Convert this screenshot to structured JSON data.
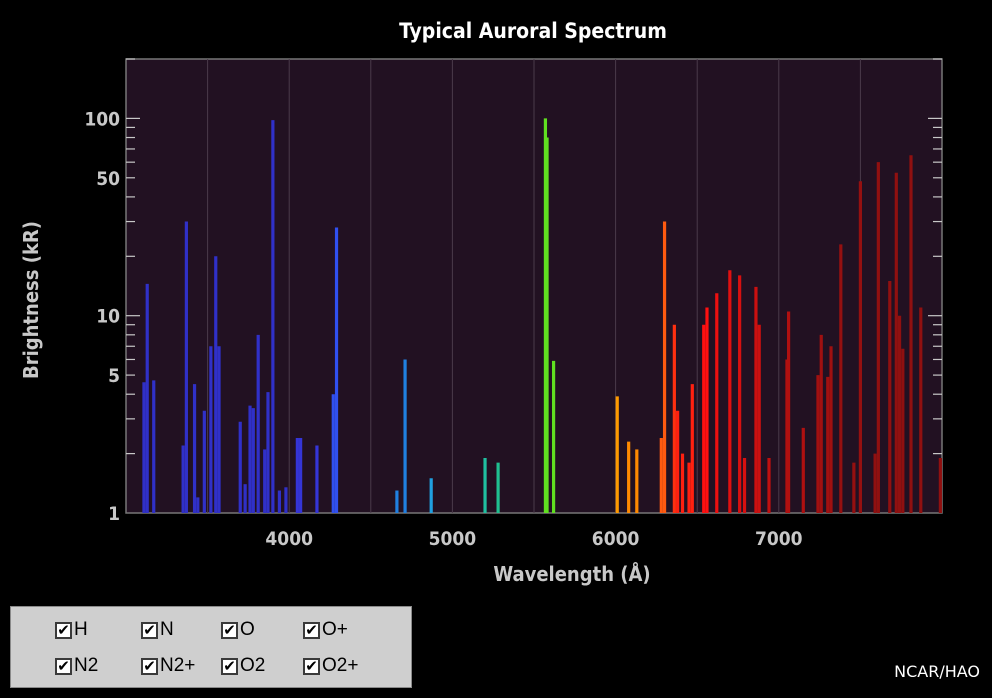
{
  "chart_data": {
    "type": "bar",
    "title": "Typical Auroral Spectrum",
    "xlabel": "Wavelength (Å)",
    "ylabel": "Brightness (kR)",
    "xlim": [
      3000,
      8000
    ],
    "ylim": [
      1,
      200
    ],
    "y_scale": "log",
    "x_ticks": [
      4000,
      5000,
      6000,
      7000
    ],
    "y_ticks": [
      1,
      5,
      10,
      50,
      100
    ],
    "grid": "vertical",
    "background": "#221122",
    "lines": [
      {
        "x": 3110,
        "y": 4.6,
        "color": "#3030c8"
      },
      {
        "x": 3130,
        "y": 14.5,
        "color": "#3030c8"
      },
      {
        "x": 3170,
        "y": 4.7,
        "color": "#3030c8"
      },
      {
        "x": 3350,
        "y": 2.2,
        "color": "#3030c8"
      },
      {
        "x": 3370,
        "y": 30,
        "color": "#3030c8"
      },
      {
        "x": 3420,
        "y": 4.5,
        "color": "#3030c8"
      },
      {
        "x": 3440,
        "y": 1.2,
        "color": "#3030c8"
      },
      {
        "x": 3480,
        "y": 3.3,
        "color": "#3030c8"
      },
      {
        "x": 3520,
        "y": 7,
        "color": "#3030c8"
      },
      {
        "x": 3550,
        "y": 20,
        "color": "#3030c8"
      },
      {
        "x": 3570,
        "y": 7,
        "color": "#3030c8"
      },
      {
        "x": 3700,
        "y": 2.9,
        "color": "#3030c8"
      },
      {
        "x": 3730,
        "y": 1.4,
        "color": "#3030c8"
      },
      {
        "x": 3760,
        "y": 3.5,
        "color": "#3030c8"
      },
      {
        "x": 3780,
        "y": 3.4,
        "color": "#3030c8"
      },
      {
        "x": 3810,
        "y": 8,
        "color": "#3030c8"
      },
      {
        "x": 3850,
        "y": 2.1,
        "color": "#3030c8"
      },
      {
        "x": 3870,
        "y": 4.1,
        "color": "#3030c8"
      },
      {
        "x": 3900,
        "y": 98,
        "color": "#3030c8"
      },
      {
        "x": 3940,
        "y": 1.3,
        "color": "#3030c8"
      },
      {
        "x": 3980,
        "y": 1.35,
        "color": "#3030c8"
      },
      {
        "x": 4050,
        "y": 2.4,
        "color": "#3535d8"
      },
      {
        "x": 4070,
        "y": 2.4,
        "color": "#3535d8"
      },
      {
        "x": 4170,
        "y": 2.2,
        "color": "#3535d8"
      },
      {
        "x": 4270,
        "y": 4,
        "color": "#3050f0"
      },
      {
        "x": 4290,
        "y": 28,
        "color": "#3050f0"
      },
      {
        "x": 4660,
        "y": 1.3,
        "color": "#2080e0"
      },
      {
        "x": 4710,
        "y": 6,
        "color": "#2080e0"
      },
      {
        "x": 4870,
        "y": 1.5,
        "color": "#20a0e0"
      },
      {
        "x": 5200,
        "y": 1.9,
        "color": "#20c0a0"
      },
      {
        "x": 5280,
        "y": 1.8,
        "color": "#20c090"
      },
      {
        "x": 5570,
        "y": 100,
        "color": "#60e020"
      },
      {
        "x": 5580,
        "y": 80,
        "color": "#60e020"
      },
      {
        "x": 5620,
        "y": 5.9,
        "color": "#60e020"
      },
      {
        "x": 6010,
        "y": 3.9,
        "color": "#ff9a00"
      },
      {
        "x": 6080,
        "y": 2.3,
        "color": "#ff8a00"
      },
      {
        "x": 6130,
        "y": 2.1,
        "color": "#ff8a00"
      },
      {
        "x": 6280,
        "y": 2.4,
        "color": "#ff5a10"
      },
      {
        "x": 6300,
        "y": 30,
        "color": "#ff5a10"
      },
      {
        "x": 6360,
        "y": 9,
        "color": "#ff3010"
      },
      {
        "x": 6380,
        "y": 3.3,
        "color": "#ff2010"
      },
      {
        "x": 6410,
        "y": 2,
        "color": "#ff2010"
      },
      {
        "x": 6450,
        "y": 1.8,
        "color": "#ff2010"
      },
      {
        "x": 6470,
        "y": 4.5,
        "color": "#ff2010"
      },
      {
        "x": 6540,
        "y": 9,
        "color": "#ff1010"
      },
      {
        "x": 6560,
        "y": 11,
        "color": "#ff1010"
      },
      {
        "x": 6620,
        "y": 13,
        "color": "#ee1010"
      },
      {
        "x": 6700,
        "y": 17,
        "color": "#e01010"
      },
      {
        "x": 6760,
        "y": 16,
        "color": "#d81010"
      },
      {
        "x": 6790,
        "y": 1.9,
        "color": "#d81010"
      },
      {
        "x": 6860,
        "y": 14,
        "color": "#cc1010"
      },
      {
        "x": 6880,
        "y": 9,
        "color": "#cc1010"
      },
      {
        "x": 6940,
        "y": 1.9,
        "color": "#c01010"
      },
      {
        "x": 7050,
        "y": 6,
        "color": "#b01010"
      },
      {
        "x": 7060,
        "y": 10.5,
        "color": "#b01010"
      },
      {
        "x": 7150,
        "y": 2.7,
        "color": "#b01010"
      },
      {
        "x": 7240,
        "y": 5,
        "color": "#a01010"
      },
      {
        "x": 7260,
        "y": 8,
        "color": "#a01010"
      },
      {
        "x": 7300,
        "y": 4.9,
        "color": "#a01010"
      },
      {
        "x": 7320,
        "y": 7,
        "color": "#a01010"
      },
      {
        "x": 7380,
        "y": 23,
        "color": "#951010"
      },
      {
        "x": 7460,
        "y": 1.8,
        "color": "#951010"
      },
      {
        "x": 7500,
        "y": 48,
        "color": "#951010"
      },
      {
        "x": 7610,
        "y": 60,
        "color": "#901010"
      },
      {
        "x": 7590,
        "y": 2,
        "color": "#901010"
      },
      {
        "x": 7680,
        "y": 15,
        "color": "#901010"
      },
      {
        "x": 7720,
        "y": 53,
        "color": "#901010"
      },
      {
        "x": 7740,
        "y": 10,
        "color": "#901010"
      },
      {
        "x": 7760,
        "y": 6.8,
        "color": "#901010"
      },
      {
        "x": 7810,
        "y": 65,
        "color": "#901010"
      },
      {
        "x": 7870,
        "y": 11,
        "color": "#901010"
      },
      {
        "x": 7990,
        "y": 1.9,
        "color": "#901010"
      }
    ]
  },
  "legend": {
    "items": [
      {
        "label": "H",
        "checked": true
      },
      {
        "label": "N",
        "checked": true
      },
      {
        "label": "O",
        "checked": true
      },
      {
        "label": "O+",
        "checked": true
      },
      {
        "label": "N2",
        "checked": true
      },
      {
        "label": "N2+",
        "checked": true
      },
      {
        "label": "O2",
        "checked": true
      },
      {
        "label": "O2+",
        "checked": true
      }
    ],
    "check_glyph": "✔"
  },
  "credit": "NCAR/HAO"
}
